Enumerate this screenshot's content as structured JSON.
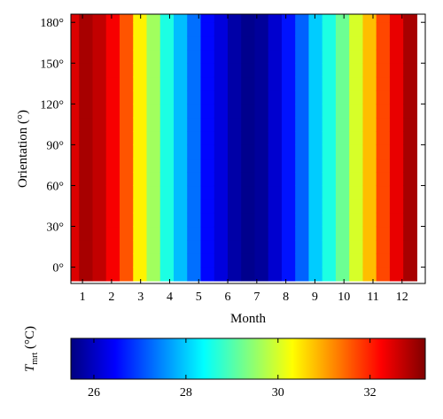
{
  "chart_data": {
    "type": "heatmap",
    "title": "",
    "xlabel": "Month",
    "ylabel": "Orientation (°)",
    "x": [
      1,
      2,
      3,
      4,
      5,
      6,
      7,
      8,
      9,
      10,
      11,
      12
    ],
    "x_tick_labels": [
      "1",
      "2",
      "3",
      "4",
      "5",
      "6",
      "7",
      "8",
      "9",
      "10",
      "11",
      "12"
    ],
    "y_tick_values": [
      0,
      30,
      60,
      90,
      120,
      150,
      180
    ],
    "y_tick_labels": [
      "0°",
      "30°",
      "60°",
      "90°",
      "120°",
      "150°",
      "180°"
    ],
    "x_range": [
      0.6,
      12.8
    ],
    "y_range": [
      -12,
      186
    ],
    "colormap": "jet",
    "colorbar": {
      "label_main": "T",
      "label_sub": "mrt",
      "label_unit": " (°C)",
      "range": [
        25.5,
        33.2
      ],
      "tick_values": [
        26,
        28,
        30,
        32
      ],
      "tick_labels": [
        "26",
        "28",
        "30",
        "32"
      ]
    },
    "column_base_values": [
      32.5,
      32.9,
      32.7,
      32.3,
      31.6,
      30.4,
      29.6,
      28.6,
      27.9,
      27.3,
      26.5,
      26.2,
      25.8,
      25.6,
      25.7,
      26.1,
      26.6,
      27.2,
      28.0,
      28.6,
      29.2,
      30.0,
      30.8,
      31.7,
      32.4,
      32.9
    ],
    "column_x_start": 0.65,
    "column_step": 0.465,
    "row_orientations": [
      -5,
      5,
      15,
      25,
      35,
      45,
      55,
      65,
      75,
      85,
      95,
      105,
      115,
      125,
      135,
      145,
      155,
      165,
      175,
      185
    ],
    "local_adjustments": [
      {
        "month": 1.5,
        "orientation": 60,
        "value": 31.9
      },
      {
        "month": 1.9,
        "orientation": 60,
        "value": 31.6
      },
      {
        "month": 2.3,
        "orientation": 60,
        "value": 31.1
      },
      {
        "month": 2.7,
        "orientation": 60,
        "value": 30.7
      },
      {
        "month": 2.7,
        "orientation": 70,
        "value": 30.5
      },
      {
        "month": 2.3,
        "orientation": 40,
        "value": 31.4
      },
      {
        "month": 0.9,
        "orientation": 40,
        "value": 32.7
      },
      {
        "month": 3.1,
        "orientation": 70,
        "value": 30.2
      },
      {
        "month": 3.1,
        "orientation": 80,
        "value": 30.0
      },
      {
        "month": 3.5,
        "orientation": 80,
        "value": 29.3
      },
      {
        "month": 4.0,
        "orientation": 80,
        "value": 28.4
      },
      {
        "month": 4.0,
        "orientation": 90,
        "value": 28.6
      },
      {
        "month": 5.0,
        "orientation": 130,
        "value": 26.5
      },
      {
        "month": 5.0,
        "orientation": 60,
        "value": 26.5
      },
      {
        "month": 5.9,
        "orientation": 120,
        "value": 25.5
      },
      {
        "month": 6.4,
        "orientation": 120,
        "value": 25.5
      },
      {
        "month": 6.8,
        "orientation": 120,
        "value": 25.6
      },
      {
        "month": 7.3,
        "orientation": 120,
        "value": 25.7
      },
      {
        "month": 7.8,
        "orientation": 120,
        "value": 26.2
      },
      {
        "month": 5.9,
        "orientation": 60,
        "value": 25.5
      },
      {
        "month": 6.4,
        "orientation": 60,
        "value": 25.5
      },
      {
        "month": 6.8,
        "orientation": 60,
        "value": 25.6
      },
      {
        "month": 7.3,
        "orientation": 60,
        "value": 25.6
      },
      {
        "month": 7.8,
        "orientation": 80,
        "value": 26.0
      },
      {
        "month": 8.2,
        "orientation": 80,
        "value": 26.3
      },
      {
        "month": 8.2,
        "orientation": 90,
        "value": 26.6
      }
    ]
  }
}
